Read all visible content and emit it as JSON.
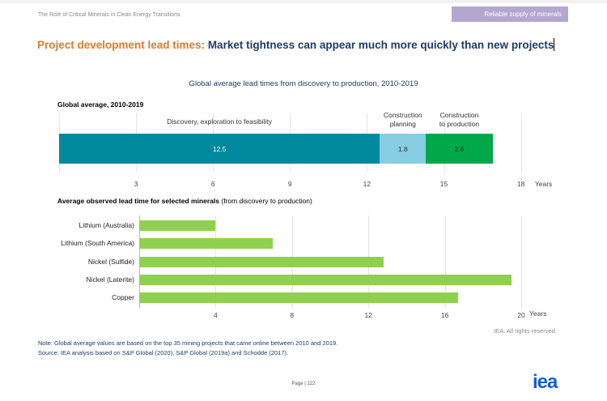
{
  "header": {
    "doc_title": "The Role of Critical Minerals in Clean Energy Transitions",
    "section": "Reliable supply of minerals"
  },
  "heading": {
    "highlight": "Project development lead times:",
    "rest": " Market tightness can appear much more quickly than new projects"
  },
  "chart_title": "Global average lead times from discovery to production, 2010-2019",
  "chart_data": [
    {
      "type": "bar",
      "stacked": true,
      "title": "Global average, 2010-2019",
      "xlabel": "Years",
      "xlim": [
        0,
        18
      ],
      "ticks": [
        3,
        6,
        9,
        12,
        15,
        18
      ],
      "series": [
        {
          "name": "Discovery, exploration to feasibility",
          "value": 12.5,
          "label": "12.5",
          "color": "#00899e"
        },
        {
          "name": "Construction planning",
          "value": 1.8,
          "label": "1.8",
          "color": "#86cde3"
        },
        {
          "name": "Construction to production",
          "value": 2.6,
          "label": "2.6",
          "color": "#00a84a"
        }
      ],
      "segment_titles": [
        [
          "Discovery, exploration to feasibility"
        ],
        [
          "Construction",
          "planning"
        ],
        [
          "Construction",
          "to production"
        ]
      ]
    },
    {
      "type": "bar",
      "orientation": "horizontal",
      "title_bold": "Average observed lead time for selected minerals",
      "title_rest": " (from discovery to production)",
      "xlabel": "Years",
      "xlim": [
        0,
        20
      ],
      "ticks": [
        4,
        8,
        12,
        16,
        20
      ],
      "categories": [
        "Lithium (Australia)",
        "Lithium (South America)",
        "Nickel (Sulfide)",
        "Nickel (Laterite)",
        "Copper"
      ],
      "values": [
        4,
        7,
        12.8,
        19.5,
        16.7
      ],
      "color": "#8fd14f"
    }
  ],
  "rights": "IEA. All rights reserved.",
  "note": "Note: Global average values are based on the top 35 mining projects that came online between 2010 and 2019.",
  "source": "Source: IEA analysis based on S&P Global (2020), S&P Global (2019a) and Schodde (2017).",
  "page": "Page | 122",
  "logo": "iea"
}
